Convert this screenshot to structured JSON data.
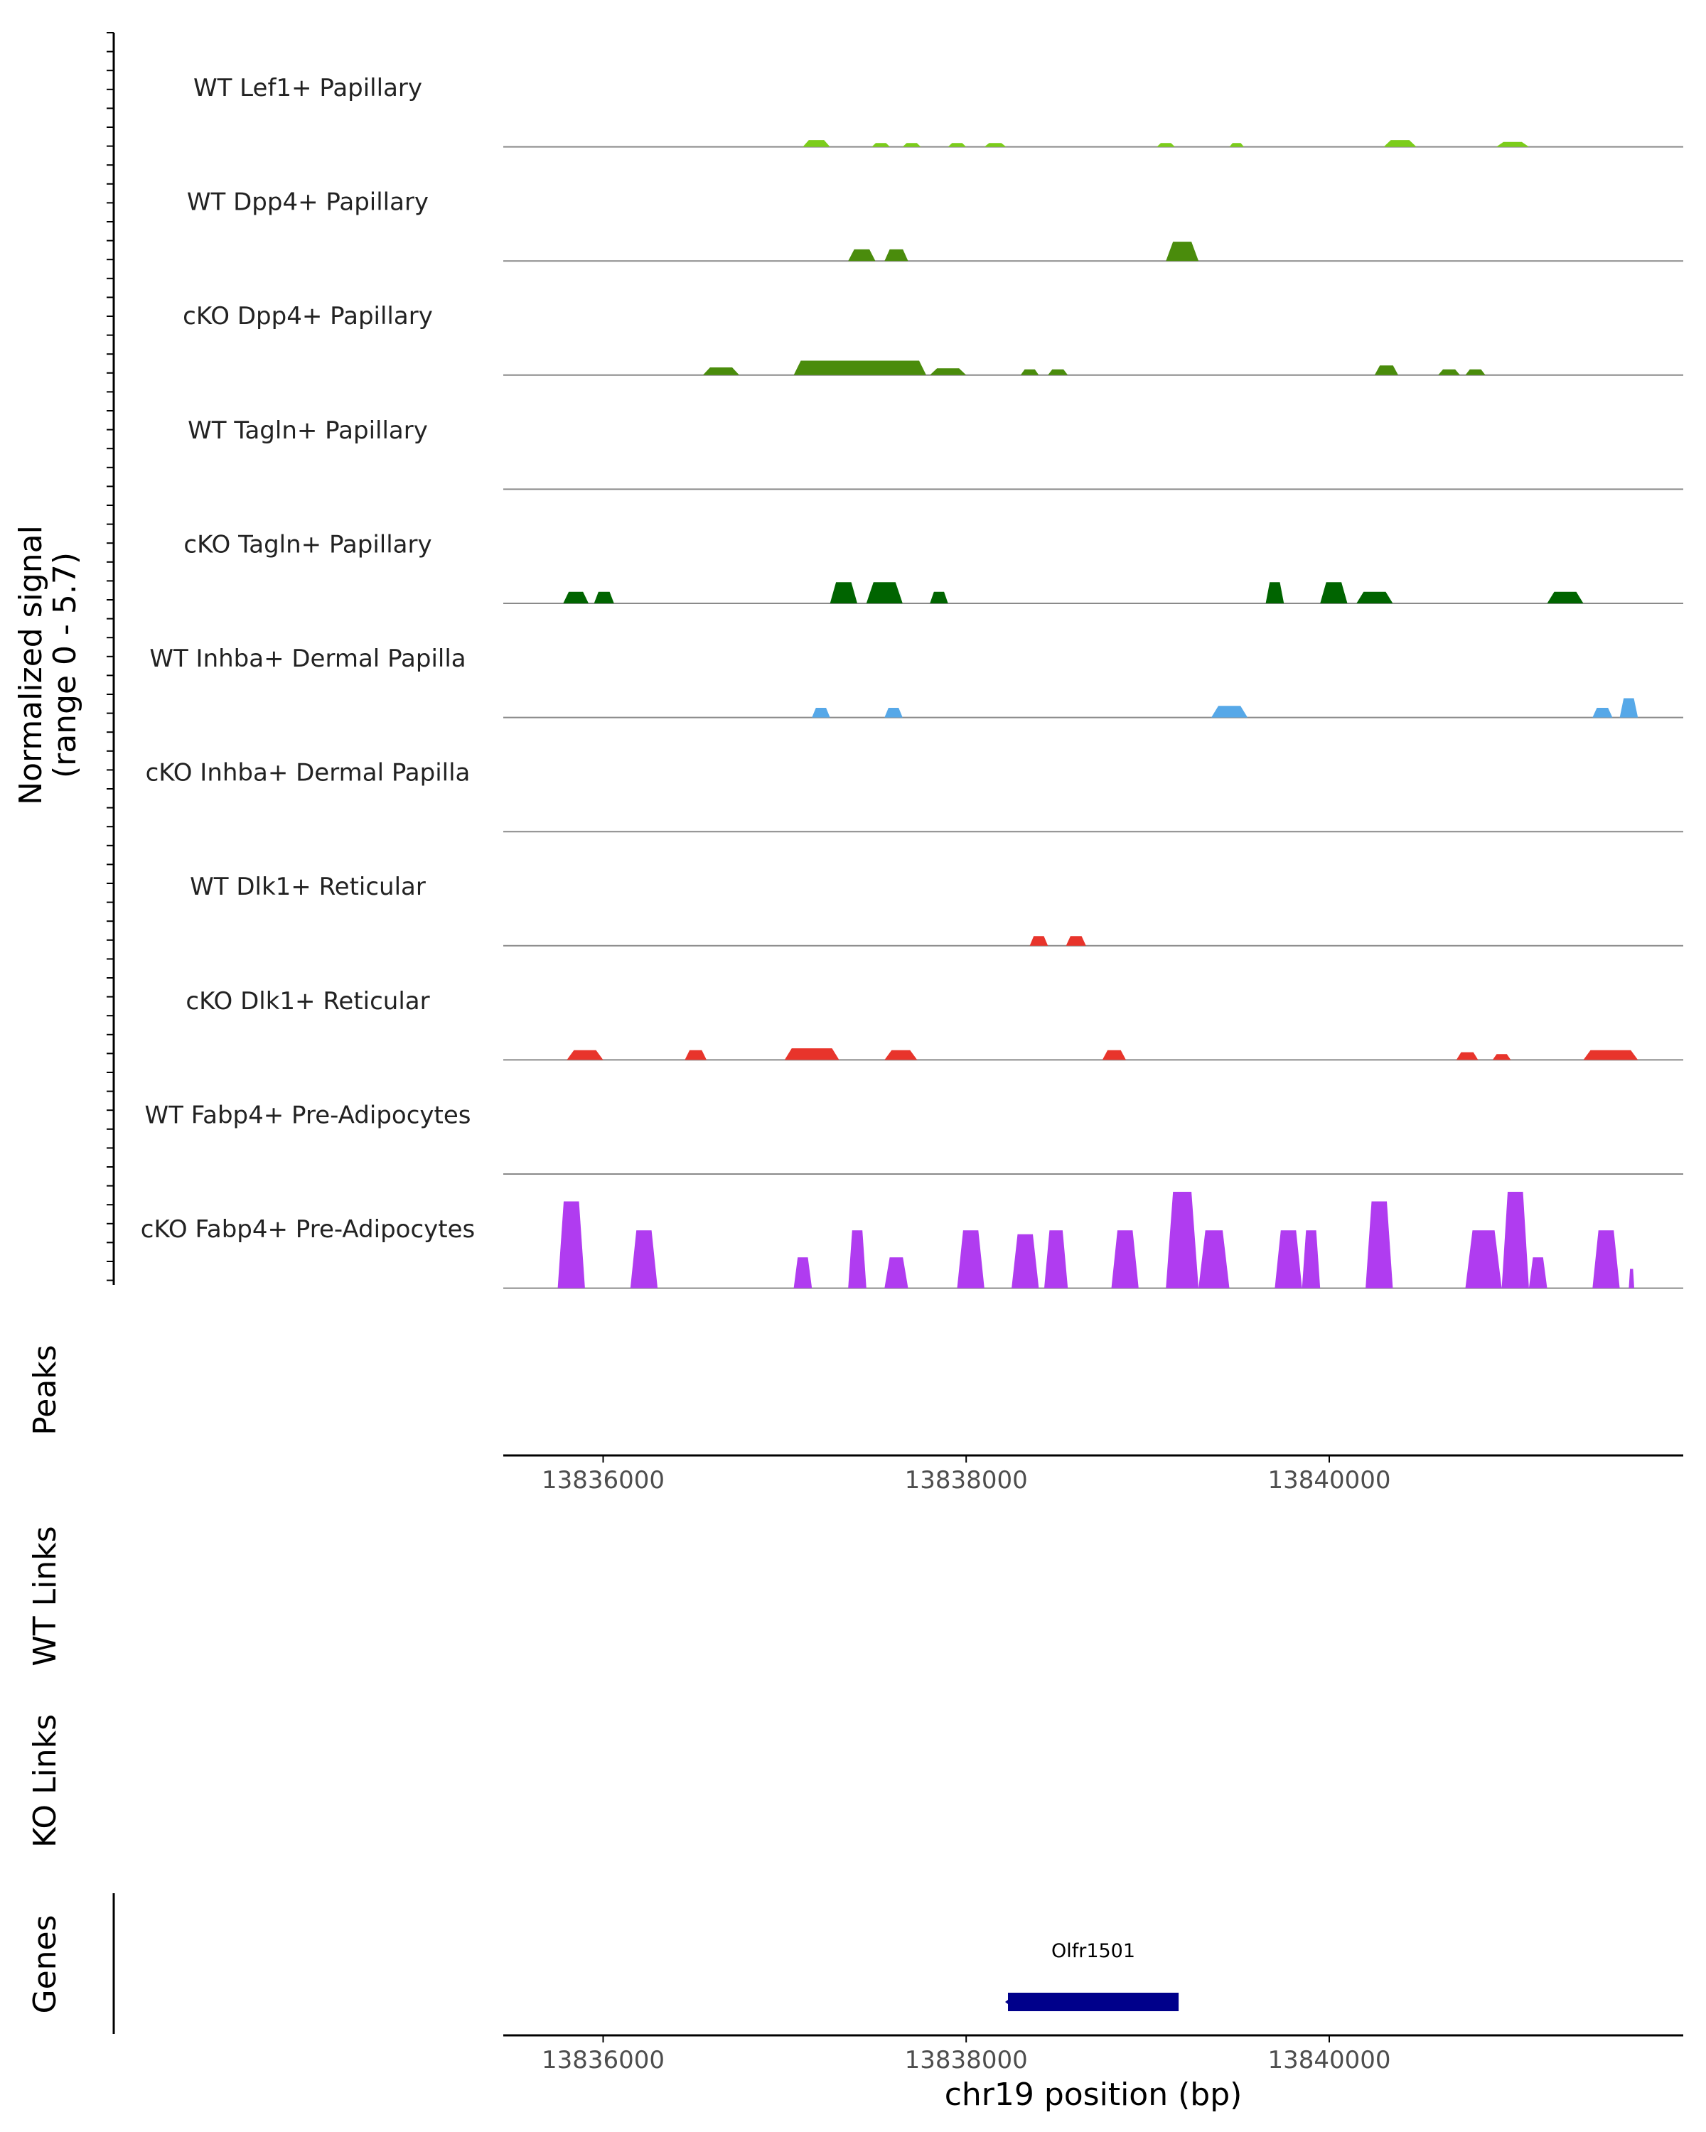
{
  "chart_data": {
    "type": "area",
    "title": "",
    "chromosome": "chr19",
    "xlim": [
      13835450,
      13841950
    ],
    "ylim": [
      0,
      5.7
    ],
    "y_axis_label_line1": "Normalized signal",
    "y_axis_label_line2": "(range 0 - 5.7)",
    "x_axis_label": "chr19 position (bp)",
    "x_ticks": [
      13836000,
      13838000,
      13840000
    ],
    "x_tick_labels": [
      "13836000",
      "13838000",
      "13840000"
    ],
    "tracks": [
      {
        "name": "WT Lef1+ Papillary",
        "color": "#7CCD1B",
        "peaks": [
          [
            13837100,
            13837250,
            0.35
          ],
          [
            13837480,
            13837580,
            0.2
          ],
          [
            13837650,
            13837750,
            0.2
          ],
          [
            13837900,
            13838000,
            0.2
          ],
          [
            13838100,
            13838220,
            0.2
          ],
          [
            13839050,
            13839150,
            0.2
          ],
          [
            13839450,
            13839530,
            0.2
          ],
          [
            13840300,
            13840480,
            0.35
          ],
          [
            13840920,
            13841100,
            0.25
          ]
        ]
      },
      {
        "name": "WT Dpp4+ Papillary",
        "color": "#4A8C0C",
        "peaks": [
          [
            13837350,
            13837500,
            0.6
          ],
          [
            13837550,
            13837680,
            0.6
          ],
          [
            13839100,
            13839280,
            1.0
          ]
        ]
      },
      {
        "name": "cKO Dpp4+ Papillary",
        "color": "#4A8C0C",
        "peaks": [
          [
            13836550,
            13836750,
            0.4
          ],
          [
            13837050,
            13837780,
            0.75
          ],
          [
            13837800,
            13838000,
            0.35
          ],
          [
            13838300,
            13838400,
            0.3
          ],
          [
            13838450,
            13838560,
            0.3
          ],
          [
            13840250,
            13840380,
            0.5
          ],
          [
            13840600,
            13840720,
            0.3
          ],
          [
            13840750,
            13840860,
            0.3
          ]
        ]
      },
      {
        "name": "WT Tagln+ Papillary",
        "color": "#006400",
        "peaks": []
      },
      {
        "name": "cKO Tagln+ Papillary",
        "color": "#006400",
        "peaks": [
          [
            13835780,
            13835920,
            0.6
          ],
          [
            13835950,
            13836060,
            0.6
          ],
          [
            13837250,
            13837400,
            1.1
          ],
          [
            13837450,
            13837650,
            1.1
          ],
          [
            13837800,
            13837900,
            0.6
          ],
          [
            13839650,
            13839750,
            1.1
          ],
          [
            13839950,
            13840100,
            1.1
          ],
          [
            13840150,
            13840350,
            0.6
          ],
          [
            13841200,
            13841400,
            0.6
          ]
        ]
      },
      {
        "name": "WT Inhba+ Dermal Papilla",
        "color": "#56A8E8",
        "peaks": [
          [
            13837150,
            13837250,
            0.5
          ],
          [
            13837550,
            13837650,
            0.5
          ],
          [
            13839350,
            13839550,
            0.6
          ],
          [
            13841450,
            13841560,
            0.5
          ],
          [
            13841600,
            13841700,
            1.0
          ]
        ]
      },
      {
        "name": "cKO Inhba+ Dermal Papilla",
        "color": "#56A8E8",
        "peaks": []
      },
      {
        "name": "WT Dlk1+ Reticular",
        "color": "#E8342B",
        "peaks": [
          [
            13838350,
            13838450,
            0.5
          ],
          [
            13838550,
            13838660,
            0.5
          ]
        ]
      },
      {
        "name": "cKO Dlk1+ Reticular",
        "color": "#E8342B",
        "peaks": [
          [
            13835800,
            13836000,
            0.5
          ],
          [
            13836450,
            13836570,
            0.5
          ],
          [
            13837000,
            13837300,
            0.6
          ],
          [
            13837550,
            13837730,
            0.5
          ],
          [
            13838750,
            13838880,
            0.5
          ],
          [
            13840700,
            13840820,
            0.4
          ],
          [
            13840900,
            13841000,
            0.3
          ],
          [
            13841400,
            13841700,
            0.5
          ]
        ]
      },
      {
        "name": "WT Fabp4+ Pre-Adipocytes",
        "color": "#B03CF0",
        "peaks": []
      },
      {
        "name": "cKO Fabp4+ Pre-Adipocytes",
        "color": "#B03CF0",
        "peaks": [
          [
            13835750,
            13835900,
            4.5
          ],
          [
            13836150,
            13836300,
            3.0
          ],
          [
            13837050,
            13837150,
            1.6
          ],
          [
            13837350,
            13837450,
            3.0
          ],
          [
            13837550,
            13837680,
            1.6
          ],
          [
            13837950,
            13838100,
            3.0
          ],
          [
            13838250,
            13838400,
            2.8
          ],
          [
            13838430,
            13838560,
            3.0
          ],
          [
            13838800,
            13838950,
            3.0
          ],
          [
            13839100,
            13839280,
            5.0
          ],
          [
            13839280,
            13839450,
            3.0
          ],
          [
            13839700,
            13839850,
            3.0
          ],
          [
            13839850,
            13839950,
            3.0
          ],
          [
            13840200,
            13840350,
            4.5
          ],
          [
            13840750,
            13840950,
            3.0
          ],
          [
            13840950,
            13841100,
            5.0
          ],
          [
            13841100,
            13841200,
            1.6
          ],
          [
            13841450,
            13841600,
            3.0
          ],
          [
            13841650,
            13841680,
            1.0
          ]
        ]
      }
    ],
    "peaks_track_label": "Peaks",
    "wt_links_label": "WT Links",
    "ko_links_label": "KO Links",
    "genes_label": "Genes",
    "genes": [
      {
        "name": "Olfr1501",
        "start": 13838230,
        "end": 13839170,
        "strand": "-",
        "color": "#00008B"
      }
    ]
  }
}
